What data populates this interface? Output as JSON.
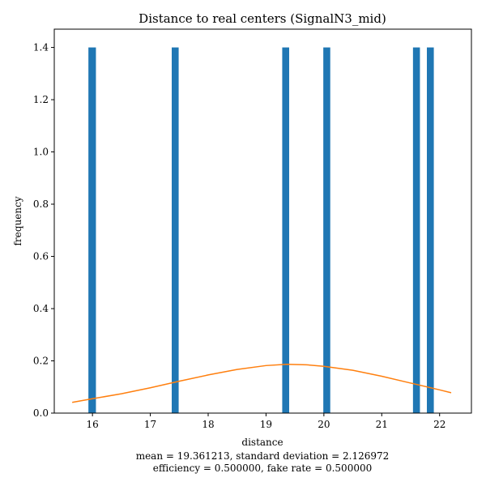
{
  "chart_data": {
    "type": "bar",
    "title": "Distance to real centers (SignalN3_mid)",
    "xlabel": "distance",
    "ylabel": "frequency",
    "captions": [
      "mean = 19.361213, standard deviation = 2.126972",
      "efficiency = 0.500000, fake rate = 0.500000"
    ],
    "xlim": [
      15.34,
      22.55
    ],
    "ylim": [
      0,
      1.47
    ],
    "x_ticks": [
      16,
      17,
      18,
      19,
      20,
      21,
      22
    ],
    "y_ticks": [
      0.0,
      0.2,
      0.4,
      0.6,
      0.8,
      1.0,
      1.2,
      1.4
    ],
    "x_tick_labels": [
      "16",
      "17",
      "18",
      "19",
      "20",
      "21",
      "22"
    ],
    "y_tick_labels": [
      "0.0",
      "0.2",
      "0.4",
      "0.6",
      "0.8",
      "1.0",
      "1.2",
      "1.4"
    ],
    "grid": false,
    "series": [
      {
        "kind": "histogram",
        "color": "#1f77b4",
        "bins": [
          {
            "x0": 15.93,
            "x1": 16.06,
            "height": 1.4
          },
          {
            "x0": 17.37,
            "x1": 17.49,
            "height": 1.4
          },
          {
            "x0": 19.28,
            "x1": 19.4,
            "height": 1.4
          },
          {
            "x0": 19.99,
            "x1": 20.11,
            "height": 1.4
          },
          {
            "x0": 21.54,
            "x1": 21.66,
            "height": 1.4
          },
          {
            "x0": 21.78,
            "x1": 21.9,
            "height": 1.4
          }
        ]
      },
      {
        "kind": "line",
        "color": "#ff7f0e",
        "x": [
          15.65,
          16.0,
          16.5,
          17.0,
          17.5,
          18.0,
          18.5,
          19.0,
          19.36,
          19.7,
          20.0,
          20.5,
          21.0,
          21.5,
          22.0,
          22.2
        ],
        "y": [
          0.041,
          0.055,
          0.074,
          0.097,
          0.122,
          0.146,
          0.167,
          0.182,
          0.187,
          0.185,
          0.179,
          0.164,
          0.141,
          0.115,
          0.089,
          0.078
        ]
      }
    ]
  }
}
